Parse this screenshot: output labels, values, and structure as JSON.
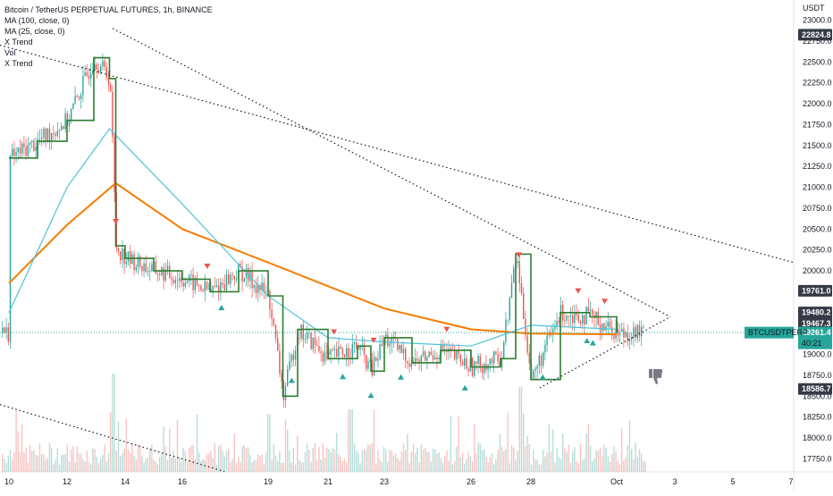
{
  "legend": {
    "title": "Bitcoin / TetherUS PERPETUAL FUTURES, 1h, BINANCE",
    "items": [
      "MA (100, close, 0)",
      "MA (25, close, 0)",
      "X Trend",
      "Vol",
      "X Trend"
    ]
  },
  "axis": {
    "currency": "USDT",
    "y_ticks": [
      "23000.0",
      "22750.0",
      "22500.0",
      "22250.0",
      "22000.0",
      "21750.0",
      "21500.0",
      "21250.0",
      "21000.0",
      "20750.0",
      "20500.0",
      "20250.0",
      "20000.0",
      "19750.0",
      "19500.0",
      "19250.0",
      "19000.0",
      "18750.0",
      "18500.0",
      "18250.0",
      "18000.0",
      "17750.0"
    ],
    "x_ticks": [
      "10",
      "12",
      "14",
      "16",
      "19",
      "21",
      "23",
      "26",
      "28",
      "Oct",
      "3",
      "5",
      "7"
    ]
  },
  "price_tags": {
    "high": "22824.8",
    "t19761": "19761.0",
    "t19480": "19480.2",
    "t19467": "19467.3",
    "symbol": "BTCUSDTPERP",
    "last": "19261.4",
    "countdown": "40:21",
    "low": "18586.7"
  },
  "colors": {
    "up": "#26a69a",
    "down": "#ef5350",
    "ma100": "#f57c00",
    "ma25": "#4fc3d7",
    "trend": "#2e7d32",
    "trend_down": "#c62828",
    "tag_dark": "#363a45"
  },
  "icons": {
    "bearish": "thumbs-down-icon"
  },
  "chart_data": {
    "type": "candlestick",
    "title": "Bitcoin / TetherUS PERPETUAL FUTURES, 1h, BINANCE",
    "ylabel": "USDT",
    "ylim": [
      17550,
      23250
    ],
    "x_categories": [
      "10",
      "12",
      "14",
      "16",
      "19",
      "21",
      "23",
      "26",
      "28",
      "Oct",
      "3",
      "5",
      "7"
    ],
    "close_series": [
      {
        "x": "10",
        "y": 21350
      },
      {
        "x": "11",
        "y": 21550
      },
      {
        "x": "12",
        "y": 21800
      },
      {
        "x": "13",
        "y": 22550
      },
      {
        "x": "13.5",
        "y": 22300
      },
      {
        "x": "13.7",
        "y": 20300
      },
      {
        "x": "14",
        "y": 20150
      },
      {
        "x": "15",
        "y": 20000
      },
      {
        "x": "16",
        "y": 19900
      },
      {
        "x": "17",
        "y": 19750
      },
      {
        "x": "18",
        "y": 20000
      },
      {
        "x": "19",
        "y": 19700
      },
      {
        "x": "19.5",
        "y": 18500
      },
      {
        "x": "20",
        "y": 19300
      },
      {
        "x": "21",
        "y": 18950
      },
      {
        "x": "22",
        "y": 19100
      },
      {
        "x": "22.5",
        "y": 18800
      },
      {
        "x": "23",
        "y": 19200
      },
      {
        "x": "24",
        "y": 18900
      },
      {
        "x": "25",
        "y": 19050
      },
      {
        "x": "26",
        "y": 18850
      },
      {
        "x": "27",
        "y": 18950
      },
      {
        "x": "27.5",
        "y": 20200
      },
      {
        "x": "28",
        "y": 18700
      },
      {
        "x": "29",
        "y": 19500
      },
      {
        "x": "30",
        "y": 19450
      },
      {
        "x": "Oct",
        "y": 19261
      }
    ],
    "ma100": [
      {
        "x": "10",
        "y": 19850
      },
      {
        "x": "12",
        "y": 20550
      },
      {
        "x": "13.7",
        "y": 21050
      },
      {
        "x": "16",
        "y": 20500
      },
      {
        "x": "19",
        "y": 20100
      },
      {
        "x": "23",
        "y": 19550
      },
      {
        "x": "26",
        "y": 19300
      },
      {
        "x": "28",
        "y": 19250
      },
      {
        "x": "Oct",
        "y": 19240
      }
    ],
    "ma25": [
      {
        "x": "10",
        "y": 19500
      },
      {
        "x": "12",
        "y": 21000
      },
      {
        "x": "13.5",
        "y": 21700
      },
      {
        "x": "16",
        "y": 20800
      },
      {
        "x": "19",
        "y": 19700
      },
      {
        "x": "21",
        "y": 19200
      },
      {
        "x": "23",
        "y": 19150
      },
      {
        "x": "26",
        "y": 19100
      },
      {
        "x": "28",
        "y": 19350
      },
      {
        "x": "Oct",
        "y": 19300
      }
    ],
    "trendlines": [
      {
        "from": {
          "x": "9.5",
          "y": 22700
        },
        "to": {
          "x": "7",
          "y": 20100
        }
      },
      {
        "from": {
          "x": "13.6",
          "y": 22900
        },
        "to": {
          "x": "Oct+1",
          "y": 19450
        }
      },
      {
        "from": {
          "x": "28.3",
          "y": 18600
        },
        "to": {
          "x": "Oct+1",
          "y": 19450
        }
      },
      {
        "from": {
          "x": "9.5",
          "y": 18400
        },
        "to": {
          "x": "17.5",
          "y": 17600
        }
      }
    ],
    "signals": {
      "sell": [
        "13.7",
        "16.9",
        "21.2",
        "22.6",
        "25.2",
        "27.6",
        "29.6",
        "30.5"
      ],
      "buy": [
        "17.4",
        "19.8",
        "21.5",
        "22.5",
        "23.6",
        "25.8",
        "28.4",
        "29.9",
        "30.1"
      ]
    }
  }
}
